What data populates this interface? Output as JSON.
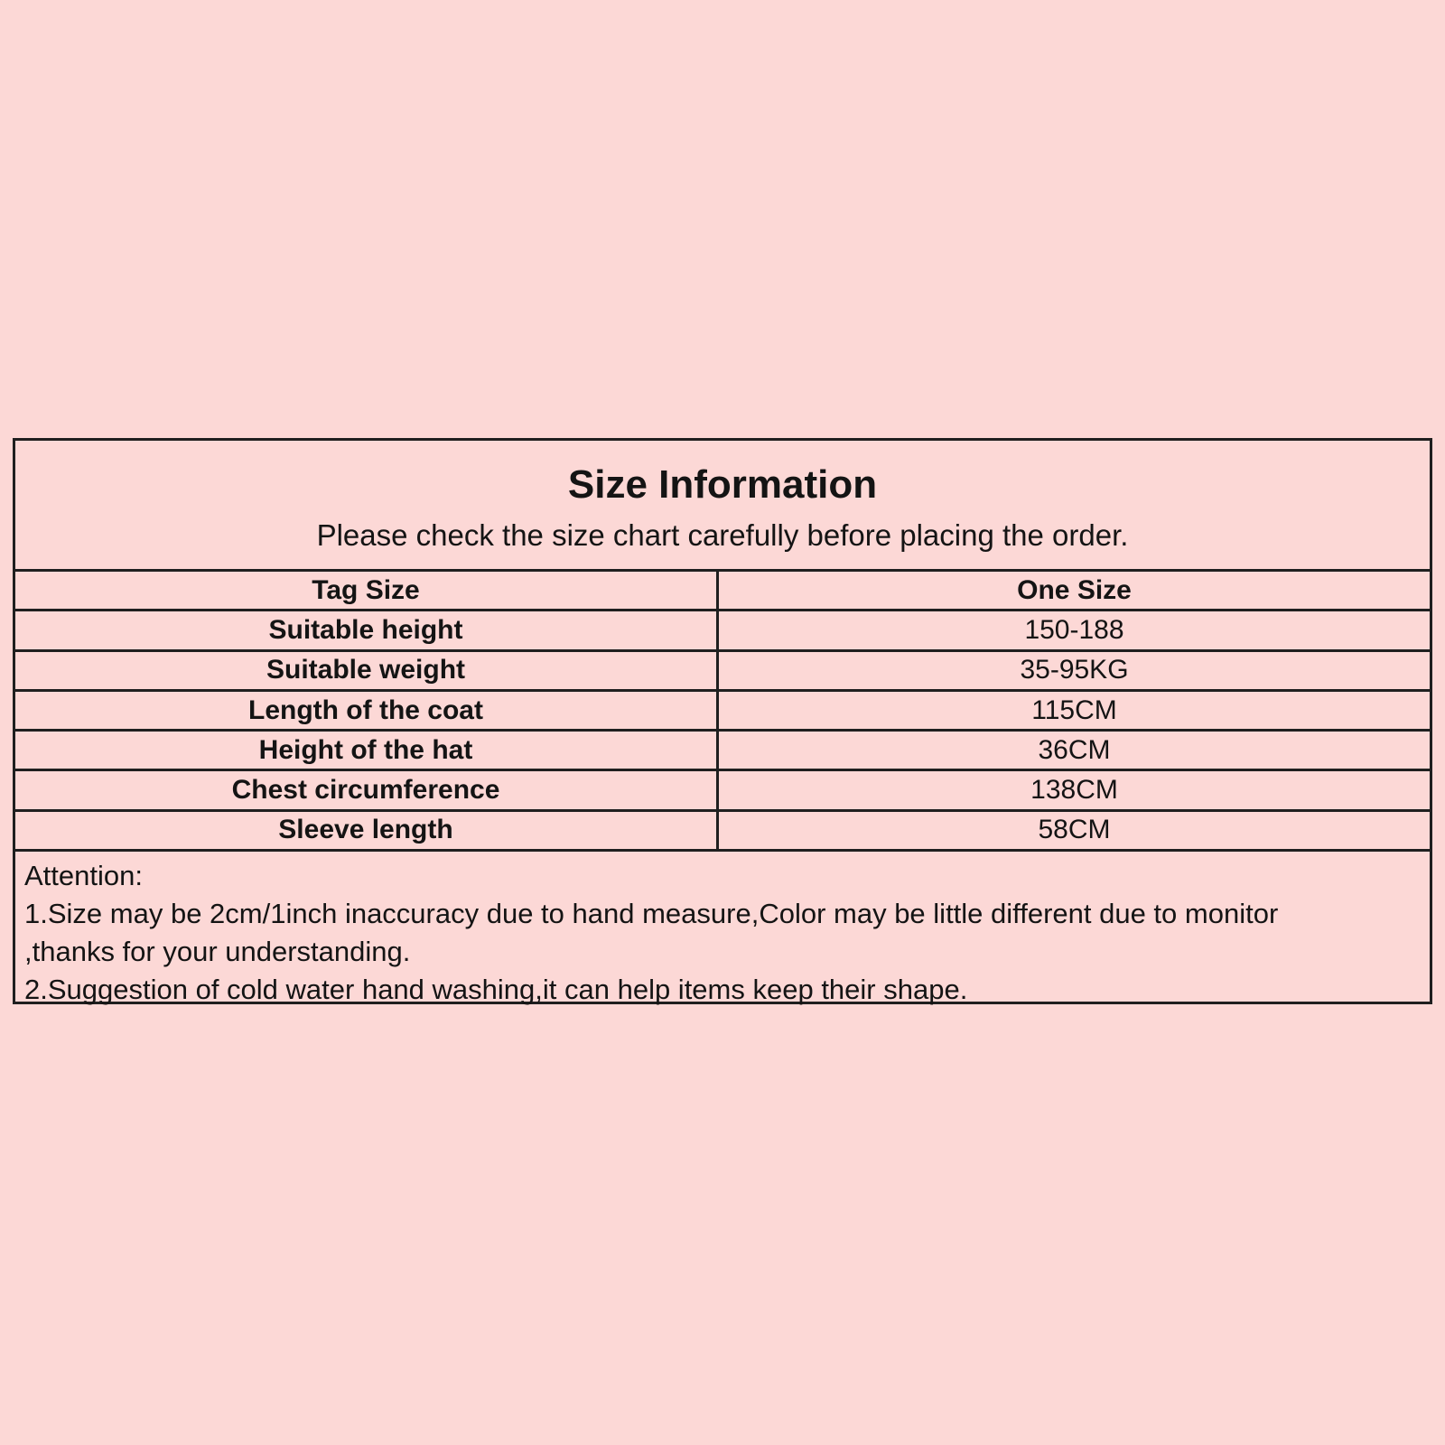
{
  "page": {
    "background_color": "#fcd8d6",
    "border_color": "#1f1f1f",
    "text_color": "#141414"
  },
  "size_chart": {
    "title": "Size Information",
    "subtitle": "Please check the size chart carefully before placing the order.",
    "columns": [
      "Tag Size",
      "One Size"
    ],
    "rows": [
      {
        "label": "Suitable height",
        "value": "150-188"
      },
      {
        "label": "Suitable weight",
        "value": "35-95KG"
      },
      {
        "label": "Length of the coat",
        "value": "115CM"
      },
      {
        "label": "Height of the hat",
        "value": "36CM"
      },
      {
        "label": "Chest circumference",
        "value": "138CM"
      },
      {
        "label": "Sleeve length",
        "value": "58CM"
      }
    ],
    "attention": {
      "heading": "Attention:",
      "lines": [
        "1.Size may be 2cm/1inch inaccuracy due to hand measure,Color may be little different due to monitor",
        ",thanks for your understanding.",
        "2.Suggestion of cold water hand washing,it can help items keep their shape."
      ]
    }
  }
}
